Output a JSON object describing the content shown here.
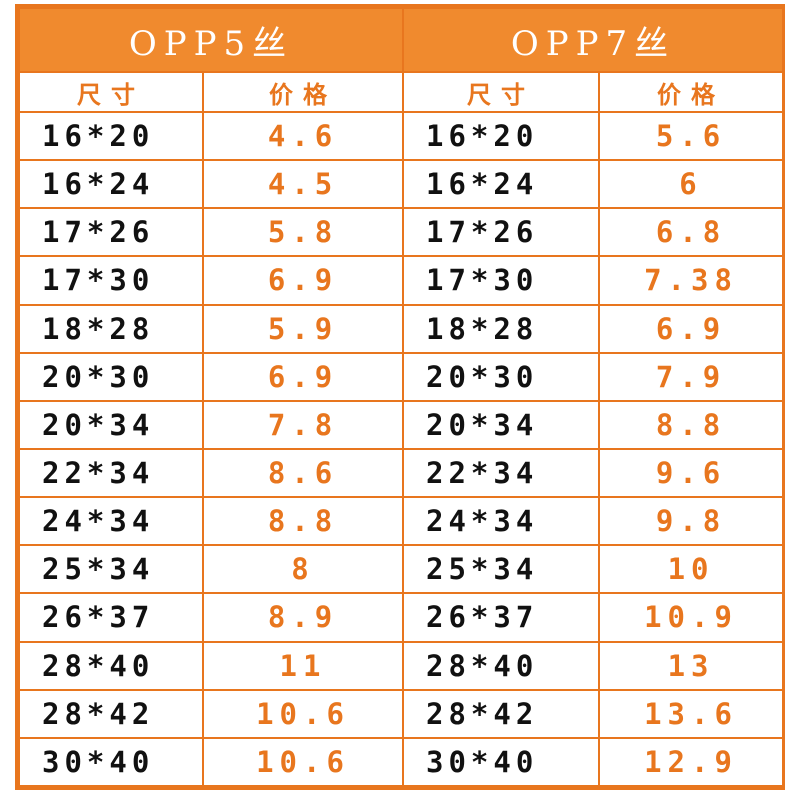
{
  "table": {
    "groups": [
      {
        "title": "OPP5丝",
        "size_header": "尺寸",
        "price_header": "价格"
      },
      {
        "title": "OPP7丝",
        "size_header": "尺寸",
        "price_header": "价格"
      }
    ],
    "rows": [
      {
        "opp5_size": "16*20",
        "opp5_price": "4.6",
        "opp7_size": "16*20",
        "opp7_price": "5.6"
      },
      {
        "opp5_size": "16*24",
        "opp5_price": "4.5",
        "opp7_size": "16*24",
        "opp7_price": "6"
      },
      {
        "opp5_size": "17*26",
        "opp5_price": "5.8",
        "opp7_size": "17*26",
        "opp7_price": "6.8"
      },
      {
        "opp5_size": "17*30",
        "opp5_price": "6.9",
        "opp7_size": "17*30",
        "opp7_price": "7.38"
      },
      {
        "opp5_size": "18*28",
        "opp5_price": "5.9",
        "opp7_size": "18*28",
        "opp7_price": "6.9"
      },
      {
        "opp5_size": "20*30",
        "opp5_price": "6.9",
        "opp7_size": "20*30",
        "opp7_price": "7.9"
      },
      {
        "opp5_size": "20*34",
        "opp5_price": "7.8",
        "opp7_size": "20*34",
        "opp7_price": "8.8"
      },
      {
        "opp5_size": "22*34",
        "opp5_price": "8.6",
        "opp7_size": "22*34",
        "opp7_price": "9.6"
      },
      {
        "opp5_size": "24*34",
        "opp5_price": "8.8",
        "opp7_size": "24*34",
        "opp7_price": "9.8"
      },
      {
        "opp5_size": "25*34",
        "opp5_price": "8",
        "opp7_size": "25*34",
        "opp7_price": "10"
      },
      {
        "opp5_size": "26*37",
        "opp5_price": "8.9",
        "opp7_size": "26*37",
        "opp7_price": "10.9"
      },
      {
        "opp5_size": "28*40",
        "opp5_price": "11",
        "opp7_size": "28*40",
        "opp7_price": "13"
      },
      {
        "opp5_size": "28*42",
        "opp5_price": "10.6",
        "opp7_size": "28*42",
        "opp7_price": "13.6"
      },
      {
        "opp5_size": "30*40",
        "opp5_price": "10.6",
        "opp7_size": "30*40",
        "opp7_price": "12.9"
      }
    ]
  },
  "colors": {
    "accent": "#e8761e",
    "title_background": "#f08a2e",
    "title_text": "#ffffff",
    "size_text": "#111111"
  }
}
